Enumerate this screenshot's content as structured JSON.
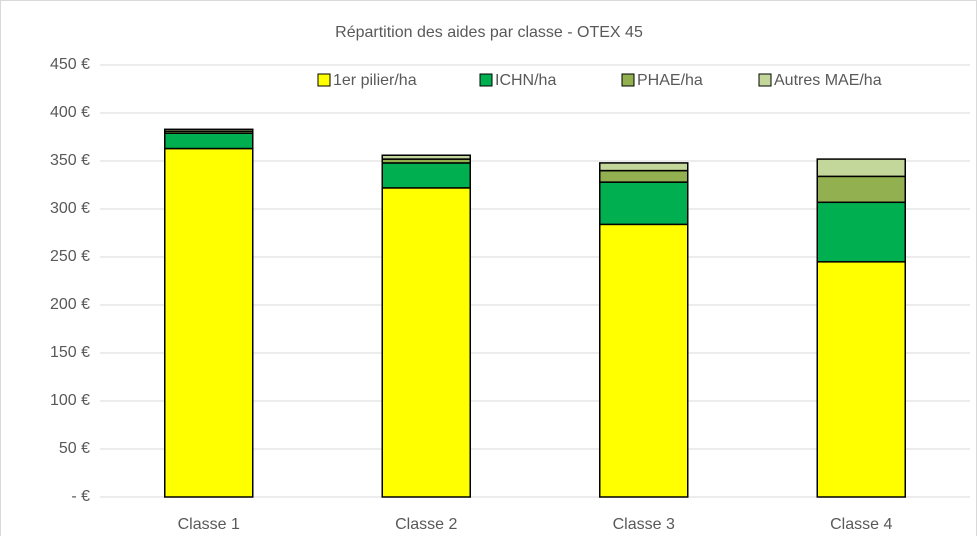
{
  "chart_data": {
    "type": "stacked_bar",
    "title": "Répartition des aides par classe - OTEX 45",
    "categories": [
      "Classe 1",
      "Classe 2",
      "Classe 3",
      "Classe 4"
    ],
    "series": [
      {
        "name": "1er pilier/ha",
        "color": "#ffff00",
        "values": [
          363,
          322,
          284,
          245
        ]
      },
      {
        "name": "ICHN/ha",
        "color": "#00b050",
        "values": [
          16,
          26,
          44,
          62
        ]
      },
      {
        "name": "PHAE/ha",
        "color": "#92b050",
        "values": [
          2,
          4,
          12,
          27
        ]
      },
      {
        "name": "Autres MAE/ha",
        "color": "#c4d79b",
        "values": [
          2,
          4,
          8,
          18
        ]
      }
    ],
    "ylim": [
      0,
      450
    ],
    "yticks": [
      {
        "value": 0,
        "label": "- €"
      },
      {
        "value": 50,
        "label": "50 €"
      },
      {
        "value": 100,
        "label": "100 €"
      },
      {
        "value": 150,
        "label": "150 €"
      },
      {
        "value": 200,
        "label": "200 €"
      },
      {
        "value": 250,
        "label": "250 €"
      },
      {
        "value": 300,
        "label": "300 €"
      },
      {
        "value": 350,
        "label": "350 €"
      },
      {
        "value": 400,
        "label": "400 €"
      },
      {
        "value": 450,
        "label": "450 €"
      }
    ],
    "grid": true,
    "legend": "top"
  }
}
